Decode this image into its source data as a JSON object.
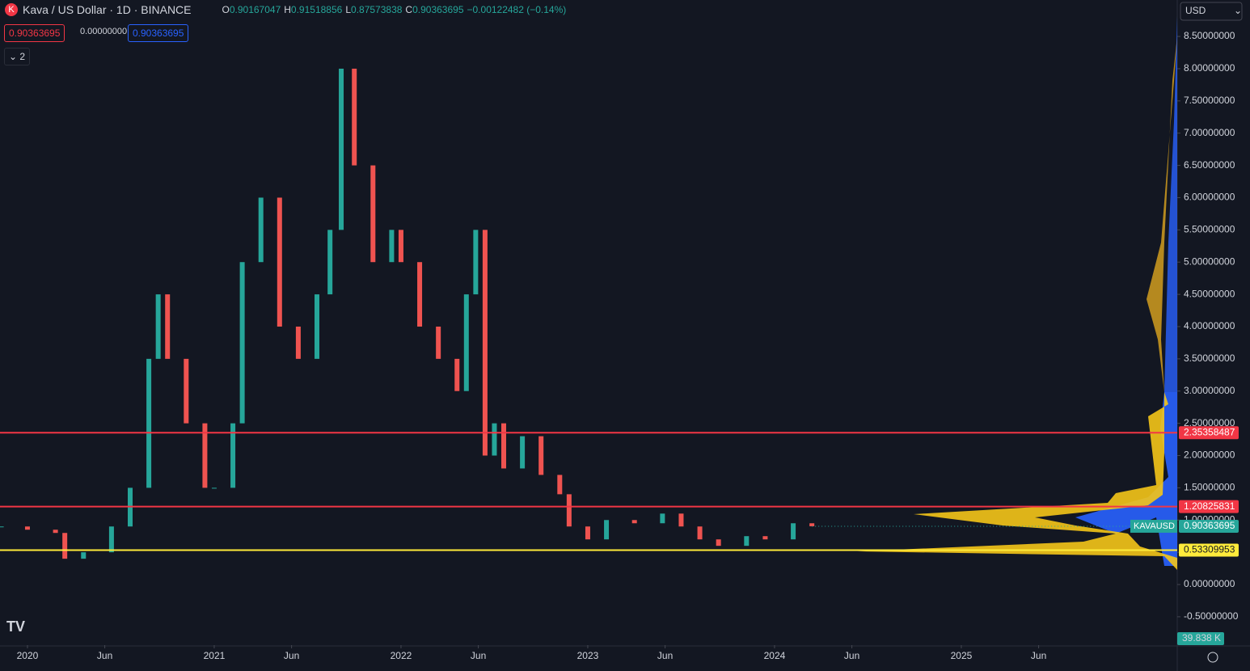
{
  "header": {
    "symbol": "Kava / US Dollar · 1D · BINANCE",
    "ohlc": [
      {
        "key": "O",
        "value": "0.90167047"
      },
      {
        "key": "H",
        "value": "0.91518856"
      },
      {
        "key": "L",
        "value": "0.87573838"
      },
      {
        "key": "C",
        "value": "0.90363695"
      }
    ],
    "change": "−0.00122482 (−0.14%)"
  },
  "badges": [
    "0.90363695",
    "0.00000000",
    "0.90363695"
  ],
  "indicators_toggle": "2",
  "currency": "USD",
  "volume_label": "39.838 K",
  "chart_data": {
    "type": "candlestick",
    "x": [
      2019.86,
      2020.0,
      2020.15,
      2020.2,
      2020.3,
      2020.45,
      2020.55,
      2020.65,
      2020.7,
      2020.75,
      2020.85,
      2020.95,
      2021.0,
      2021.1,
      2021.15,
      2021.25,
      2021.35,
      2021.45,
      2021.55,
      2021.62,
      2021.68,
      2021.75,
      2021.85,
      2021.95,
      2022.0,
      2022.1,
      2022.2,
      2022.3,
      2022.35,
      2022.4,
      2022.45,
      2022.5,
      2022.55,
      2022.65,
      2022.75,
      2022.85,
      2022.9,
      2023.0,
      2023.1,
      2023.25,
      2023.4,
      2023.5,
      2023.6,
      2023.7,
      2023.85,
      2023.95,
      2024.1,
      2024.2
    ],
    "values": [
      0.9,
      0.85,
      0.8,
      0.4,
      0.5,
      0.9,
      1.5,
      3.5,
      4.5,
      3.5,
      2.5,
      1.5,
      1.5,
      2.5,
      5.0,
      6.0,
      4.0,
      3.5,
      4.5,
      5.5,
      8.0,
      6.5,
      5.0,
      5.5,
      5.0,
      4.0,
      3.5,
      3.0,
      4.5,
      5.5,
      2.0,
      2.5,
      1.8,
      2.3,
      1.7,
      1.4,
      0.9,
      0.7,
      1.0,
      0.95,
      1.1,
      0.9,
      0.7,
      0.6,
      0.75,
      0.7,
      0.95,
      0.90363695
    ],
    "up_color": "#26a69a",
    "down_color": "#ef5350",
    "xlim": [
      2019.853,
      2026.156
    ],
    "xticks": [
      {
        "value": 2020.0,
        "label": "2020"
      },
      {
        "value": 2020.414,
        "label": "Jun"
      },
      {
        "value": 2021.0,
        "label": "2021"
      },
      {
        "value": 2021.414,
        "label": "Jun"
      },
      {
        "value": 2022.0,
        "label": "2022"
      },
      {
        "value": 2022.414,
        "label": "Jun"
      },
      {
        "value": 2023.0,
        "label": "2023"
      },
      {
        "value": 2023.414,
        "label": "Jun"
      },
      {
        "value": 2024.0,
        "label": "2024"
      },
      {
        "value": 2024.414,
        "label": "Jun"
      },
      {
        "value": 2025.0,
        "label": "2025"
      },
      {
        "value": 2025.414,
        "label": "Jun"
      }
    ],
    "ylim": [
      -0.94,
      9.065
    ],
    "yticks": [
      {
        "value": -0.5,
        "label": "-0.50000000"
      },
      {
        "value": 0,
        "label": "0.00000000"
      },
      {
        "value": 0.5,
        "label": "0.50000000"
      },
      {
        "value": 1,
        "label": "1.00000000"
      },
      {
        "value": 1.5,
        "label": "1.50000000"
      },
      {
        "value": 2,
        "label": "2.00000000"
      },
      {
        "value": 2.5,
        "label": "2.50000000"
      },
      {
        "value": 3,
        "label": "3.00000000"
      },
      {
        "value": 3.5,
        "label": "3.50000000"
      },
      {
        "value": 4,
        "label": "4.00000000"
      },
      {
        "value": 4.5,
        "label": "4.50000000"
      },
      {
        "value": 5,
        "label": "5.00000000"
      },
      {
        "value": 5.5,
        "label": "5.50000000"
      },
      {
        "value": 6,
        "label": "6.00000000"
      },
      {
        "value": 6.5,
        "label": "6.50000000"
      },
      {
        "value": 7,
        "label": "7.00000000"
      },
      {
        "value": 7.5,
        "label": "7.50000000"
      },
      {
        "value": 8,
        "label": "8.00000000"
      },
      {
        "value": 8.5,
        "label": "8.50000000"
      }
    ],
    "levels": [
      {
        "value": 2.35358487,
        "color": "#f23645"
      },
      {
        "value": 1.20825831,
        "color": "#f23645"
      },
      {
        "value": 0.53309953,
        "color": "#ffeb3b"
      }
    ],
    "last_price": {
      "symbol": "KAVAUSD",
      "value": 0.90363695,
      "color": "#26a69a"
    }
  }
}
